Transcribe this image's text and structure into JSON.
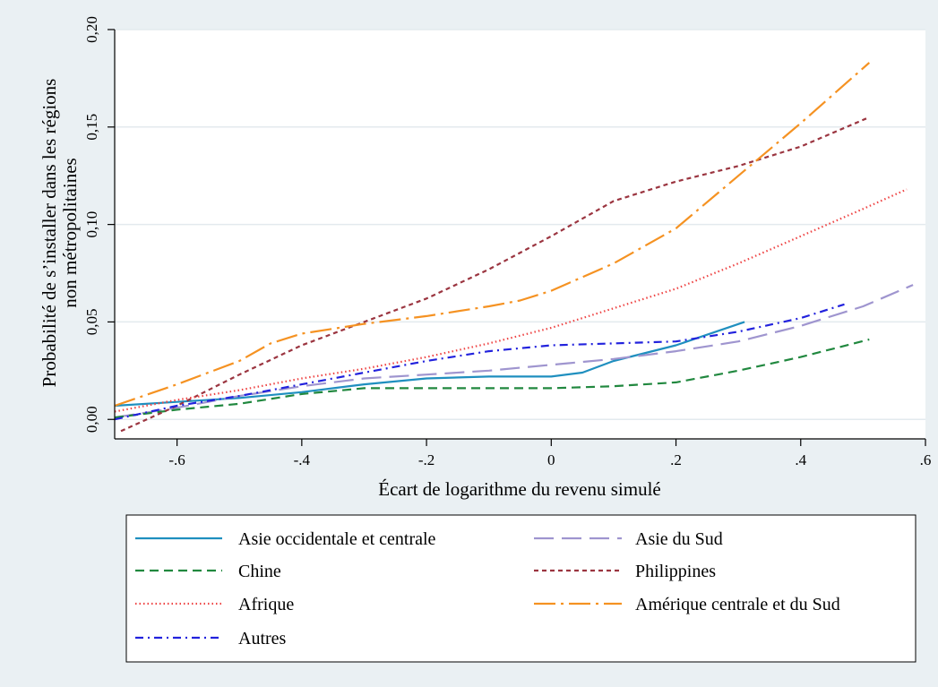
{
  "chart_data": {
    "type": "line",
    "title": "",
    "xlabel": "Écart de logarithme du revenu simulé",
    "ylabel_lines": [
      "Probabilité de s’installer dans les régions",
      "non métropolitaines"
    ],
    "xlim": [
      -0.7,
      0.6
    ],
    "ylim": [
      -0.01,
      0.2
    ],
    "x_ticks": [
      -0.6,
      -0.4,
      -0.2,
      0,
      0.2,
      0.4,
      0.6
    ],
    "x_tick_labels": [
      "-.6",
      "-.4",
      "-.2",
      "0",
      ".2",
      ".4",
      ".6"
    ],
    "y_ticks": [
      0,
      0.05,
      0.1,
      0.15,
      0.2
    ],
    "y_tick_labels": [
      "0,00",
      "0,05",
      "0,10",
      "0,15",
      "0,20"
    ],
    "grid": "horizontal",
    "legend_position": "bottom",
    "series": [
      {
        "name": "Asie occidentale et centrale",
        "color": "#1f8fbf",
        "dash": "solid",
        "x": [
          -0.7,
          -0.6,
          -0.5,
          -0.4,
          -0.3,
          -0.2,
          -0.1,
          0,
          0.05,
          0.1,
          0.2,
          0.31
        ],
        "y": [
          0.007,
          0.009,
          0.011,
          0.014,
          0.018,
          0.021,
          0.022,
          0.022,
          0.024,
          0.03,
          0.038,
          0.05
        ]
      },
      {
        "name": "Asie du Sud",
        "color": "#9f95cf",
        "dash": "longdash",
        "x": [
          -0.7,
          -0.6,
          -0.5,
          -0.4,
          -0.3,
          -0.2,
          -0.1,
          0,
          0.1,
          0.2,
          0.3,
          0.4,
          0.5,
          0.58
        ],
        "y": [
          0.001,
          0.006,
          0.012,
          0.017,
          0.021,
          0.023,
          0.025,
          0.028,
          0.031,
          0.035,
          0.04,
          0.048,
          0.058,
          0.069
        ]
      },
      {
        "name": "Chine",
        "color": "#21883f",
        "dash": "dash",
        "x": [
          -0.7,
          -0.6,
          -0.5,
          -0.4,
          -0.3,
          -0.2,
          -0.1,
          0,
          0.1,
          0.2,
          0.3,
          0.4,
          0.51
        ],
        "y": [
          0.001,
          0.005,
          0.008,
          0.013,
          0.016,
          0.016,
          0.016,
          0.016,
          0.017,
          0.019,
          0.025,
          0.032,
          0.041
        ]
      },
      {
        "name": "Philippines",
        "color": "#9b3540",
        "dash": "shortdash",
        "x": [
          -0.69,
          -0.6,
          -0.5,
          -0.4,
          -0.3,
          -0.2,
          -0.1,
          0,
          0.05,
          0.1,
          0.2,
          0.3,
          0.4,
          0.51
        ],
        "y": [
          -0.006,
          0.007,
          0.023,
          0.038,
          0.05,
          0.062,
          0.077,
          0.094,
          0.103,
          0.112,
          0.122,
          0.13,
          0.14,
          0.155
        ]
      },
      {
        "name": "Afrique",
        "color": "#ee4444",
        "dash": "dot",
        "x": [
          -0.7,
          -0.6,
          -0.5,
          -0.4,
          -0.3,
          -0.2,
          -0.1,
          0,
          0.1,
          0.2,
          0.3,
          0.4,
          0.5,
          0.57
        ],
        "y": [
          0.004,
          0.01,
          0.015,
          0.021,
          0.026,
          0.032,
          0.039,
          0.047,
          0.057,
          0.067,
          0.08,
          0.094,
          0.108,
          0.118
        ]
      },
      {
        "name": "Amérique centrale et du Sud",
        "color": "#f59222",
        "dash": "dashdot-long",
        "x": [
          -0.7,
          -0.6,
          -0.5,
          -0.45,
          -0.4,
          -0.3,
          -0.2,
          -0.1,
          -0.05,
          0,
          0.1,
          0.2,
          0.3,
          0.4,
          0.51
        ],
        "y": [
          0.007,
          0.018,
          0.03,
          0.039,
          0.044,
          0.049,
          0.053,
          0.058,
          0.061,
          0.066,
          0.08,
          0.098,
          0.125,
          0.152,
          0.183
        ]
      },
      {
        "name": "Autres",
        "color": "#2222dd",
        "dash": "dashdot",
        "x": [
          -0.7,
          -0.6,
          -0.5,
          -0.4,
          -0.3,
          -0.2,
          -0.1,
          0,
          0.1,
          0.2,
          0.3,
          0.4,
          0.47
        ],
        "y": [
          0.0,
          0.007,
          0.012,
          0.018,
          0.024,
          0.03,
          0.035,
          0.038,
          0.039,
          0.04,
          0.045,
          0.052,
          0.059
        ]
      }
    ]
  }
}
